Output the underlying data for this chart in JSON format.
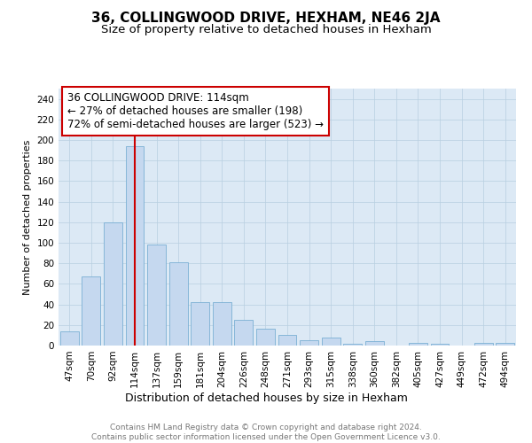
{
  "title": "36, COLLINGWOOD DRIVE, HEXHAM, NE46 2JA",
  "subtitle": "Size of property relative to detached houses in Hexham",
  "xlabel": "Distribution of detached houses by size in Hexham",
  "ylabel": "Number of detached properties",
  "categories": [
    "47sqm",
    "70sqm",
    "92sqm",
    "114sqm",
    "137sqm",
    "159sqm",
    "181sqm",
    "204sqm",
    "226sqm",
    "248sqm",
    "271sqm",
    "293sqm",
    "315sqm",
    "338sqm",
    "360sqm",
    "382sqm",
    "405sqm",
    "427sqm",
    "449sqm",
    "472sqm",
    "494sqm"
  ],
  "values": [
    14,
    67,
    120,
    194,
    98,
    81,
    42,
    42,
    25,
    16,
    10,
    5,
    8,
    2,
    4,
    0,
    3,
    2,
    0,
    3,
    3
  ],
  "bar_color": "#c5d8ef",
  "bar_edge_color": "#7aafd4",
  "vline_x_index": 3,
  "vline_color": "#cc0000",
  "annotation_line1": "36 COLLINGWOOD DRIVE: 114sqm",
  "annotation_line2": "← 27% of detached houses are smaller (198)",
  "annotation_line3": "72% of semi-detached houses are larger (523) →",
  "annotation_box_facecolor": "#ffffff",
  "annotation_box_edgecolor": "#cc0000",
  "ylim": [
    0,
    250
  ],
  "yticks": [
    0,
    20,
    40,
    60,
    80,
    100,
    120,
    140,
    160,
    180,
    200,
    220,
    240
  ],
  "plot_bg_color": "#dce9f5",
  "figure_bg_color": "#ffffff",
  "grid_color": "#b8cfe0",
  "title_fontsize": 11,
  "subtitle_fontsize": 9.5,
  "xlabel_fontsize": 9,
  "ylabel_fontsize": 8,
  "tick_fontsize": 7.5,
  "annotation_fontsize": 8.5,
  "footer_fontsize": 6.5,
  "footer_text": "Contains HM Land Registry data © Crown copyright and database right 2024.\nContains public sector information licensed under the Open Government Licence v3.0.",
  "footer_color": "#777777"
}
